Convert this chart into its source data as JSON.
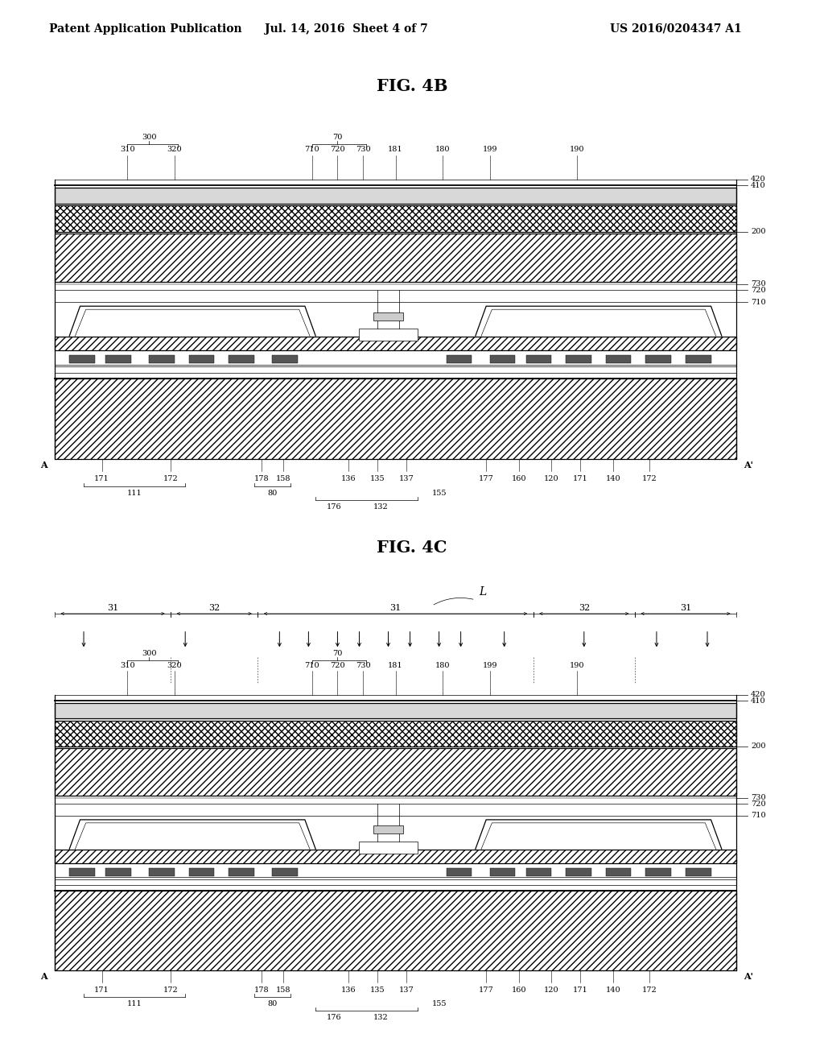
{
  "header_left": "Patent Application Publication",
  "header_mid": "Jul. 14, 2016  Sheet 4 of 7",
  "header_right": "US 2016/0204347 A1",
  "fig4b_title": "FIG. 4B",
  "fig4c_title": "FIG. 4C",
  "bg_color": "#ffffff",
  "lc": "#000000",
  "header_fs": 10,
  "title_fs": 15,
  "label_fs": 8,
  "small_fs": 7
}
